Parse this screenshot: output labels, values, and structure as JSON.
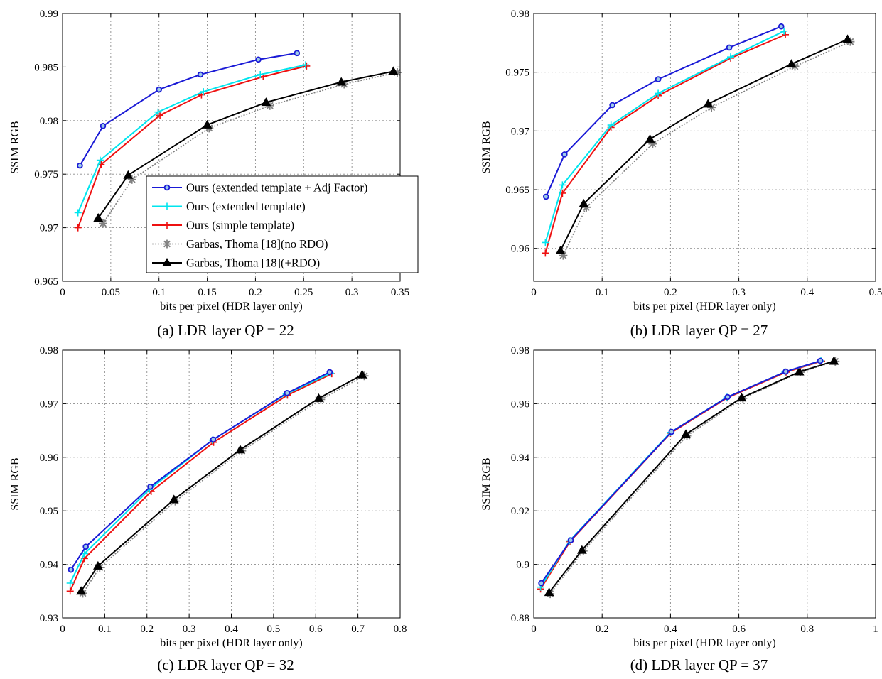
{
  "legend": {
    "entries": [
      {
        "label": "Ours (extended template + Adj Factor)",
        "color": "#1a1ad6",
        "marker": "circle",
        "dash": false
      },
      {
        "label": "Ours (extended template)",
        "color": "#00e5ee",
        "marker": "plus",
        "dash": false
      },
      {
        "label": "Ours (simple template)",
        "color": "#ee1010",
        "marker": "plus",
        "dash": false
      },
      {
        "label": "Garbas, Thoma [18](no RDO)",
        "color": "#808080",
        "marker": "star",
        "dash": true
      },
      {
        "label": "Garbas, Thoma [18](+RDO)",
        "color": "#000000",
        "marker": "triangle",
        "dash": false
      }
    ]
  },
  "chart_data": [
    {
      "type": "line",
      "caption": "(a) LDR layer QP = 22",
      "xlabel": "bits per pixel (HDR layer only)",
      "ylabel": "SSIM RGB",
      "xlim": [
        0,
        0.35
      ],
      "ylim": [
        0.965,
        0.99
      ],
      "xticks": [
        "0",
        "0.05",
        "0.1",
        "0.15",
        "0.2",
        "0.25",
        "0.3",
        "0.35"
      ],
      "yticks": [
        "0.965",
        "0.97",
        "0.975",
        "0.98",
        "0.985",
        "0.99"
      ],
      "grid": true,
      "legend_position": "lower-right",
      "series": [
        {
          "name": "Ours (extended template + Adj Factor)",
          "x": [
            0.018,
            0.042,
            0.1,
            0.143,
            0.203,
            0.243
          ],
          "y": [
            0.9758,
            0.9795,
            0.9829,
            0.9843,
            0.9857,
            0.9863
          ]
        },
        {
          "name": "Ours (extended template)",
          "x": [
            0.016,
            0.039,
            0.099,
            0.146,
            0.205,
            0.252
          ],
          "y": [
            0.9714,
            0.9763,
            0.9808,
            0.9827,
            0.9843,
            0.9852
          ]
        },
        {
          "name": "Ours (simple template)",
          "x": [
            0.016,
            0.04,
            0.101,
            0.144,
            0.208,
            0.253
          ],
          "y": [
            0.97,
            0.9759,
            0.9805,
            0.9824,
            0.9841,
            0.9851
          ]
        },
        {
          "name": "Garbas, Thoma [18](no RDO)",
          "x": [
            0.042,
            0.072,
            0.152,
            0.215,
            0.292,
            0.347
          ],
          "y": [
            0.9704,
            0.9745,
            0.9793,
            0.9814,
            0.9834,
            0.9845
          ]
        },
        {
          "name": "Garbas, Thoma [18](+RDO)",
          "x": [
            0.037,
            0.068,
            0.15,
            0.211,
            0.289,
            0.343
          ],
          "y": [
            0.9709,
            0.9749,
            0.9796,
            0.9817,
            0.9836,
            0.9846
          ]
        }
      ]
    },
    {
      "type": "line",
      "caption": "(b) LDR layer QP = 27",
      "xlabel": "bits per pixel (HDR layer only)",
      "ylabel": "SSIM RGB",
      "xlim": [
        0,
        0.5
      ],
      "ylim": [
        0.9572,
        0.98
      ],
      "xticks": [
        "0",
        "0.1",
        "0.2",
        "0.3",
        "0.4",
        "0.5"
      ],
      "yticks": [
        "0.96",
        "0.965",
        "0.97",
        "0.975",
        "0.98"
      ],
      "grid": true,
      "series": [
        {
          "name": "Ours (extended template + Adj Factor)",
          "x": [
            0.018,
            0.045,
            0.115,
            0.182,
            0.286,
            0.362
          ],
          "y": [
            0.9644,
            0.968,
            0.9722,
            0.9744,
            0.9771,
            0.9789
          ]
        },
        {
          "name": "Ours (extended template)",
          "x": [
            0.017,
            0.042,
            0.113,
            0.182,
            0.288,
            0.366
          ],
          "y": [
            0.9605,
            0.9654,
            0.9705,
            0.9732,
            0.9763,
            0.9785
          ]
        },
        {
          "name": "Ours (simple template)",
          "x": [
            0.017,
            0.042,
            0.113,
            0.182,
            0.288,
            0.368
          ],
          "y": [
            0.9596,
            0.9647,
            0.9703,
            0.973,
            0.9762,
            0.9782
          ]
        },
        {
          "name": "Garbas, Thoma [18](no RDO)",
          "x": [
            0.043,
            0.077,
            0.174,
            0.26,
            0.382,
            0.463
          ],
          "y": [
            0.9594,
            0.9635,
            0.9689,
            0.972,
            0.9755,
            0.9776
          ]
        },
        {
          "name": "Garbas, Thoma [18](+RDO)",
          "x": [
            0.039,
            0.073,
            0.17,
            0.255,
            0.377,
            0.459
          ],
          "y": [
            0.9598,
            0.9638,
            0.9693,
            0.9723,
            0.9757,
            0.9778
          ]
        }
      ]
    },
    {
      "type": "line",
      "caption": "(c) LDR layer QP = 32",
      "xlabel": "bits per pixel (HDR layer only)",
      "ylabel": "SSIM RGB",
      "xlim": [
        0,
        0.8
      ],
      "ylim": [
        0.93,
        0.98
      ],
      "xticks": [
        "0",
        "0.1",
        "0.2",
        "0.3",
        "0.4",
        "0.5",
        "0.6",
        "0.7",
        "0.8"
      ],
      "yticks": [
        "0.93",
        "0.94",
        "0.95",
        "0.96",
        "0.97",
        "0.98"
      ],
      "grid": true,
      "series": [
        {
          "name": "Ours (extended template + Adj Factor)",
          "x": [
            0.02,
            0.055,
            0.208,
            0.357,
            0.532,
            0.633
          ],
          "y": [
            0.939,
            0.9433,
            0.9545,
            0.9633,
            0.972,
            0.9759
          ]
        },
        {
          "name": "Ours (extended template)",
          "x": [
            0.018,
            0.052,
            0.206,
            0.355,
            0.53,
            0.635
          ],
          "y": [
            0.9365,
            0.942,
            0.954,
            0.9632,
            0.9718,
            0.9757
          ]
        },
        {
          "name": "Ours (simple template)",
          "x": [
            0.018,
            0.052,
            0.21,
            0.358,
            0.533,
            0.638
          ],
          "y": [
            0.935,
            0.9411,
            0.9536,
            0.9628,
            0.9716,
            0.9756
          ]
        },
        {
          "name": "Garbas, Thoma [18](no RDO)",
          "x": [
            0.048,
            0.088,
            0.267,
            0.425,
            0.612,
            0.715
          ],
          "y": [
            0.9346,
            0.9394,
            0.9518,
            0.9612,
            0.9708,
            0.9752
          ]
        },
        {
          "name": "Garbas, Thoma [18](+RDO)",
          "x": [
            0.044,
            0.084,
            0.264,
            0.421,
            0.607,
            0.71
          ],
          "y": [
            0.935,
            0.9397,
            0.9521,
            0.9614,
            0.971,
            0.9754
          ]
        }
      ]
    },
    {
      "type": "line",
      "caption": "(d) LDR layer QP = 37",
      "xlabel": "bits per pixel (HDR layer only)",
      "ylabel": "SSIM RGB",
      "xlim": [
        0,
        1
      ],
      "ylim": [
        0.88,
        0.98
      ],
      "xticks": [
        "0",
        "0.2",
        "0.4",
        "0.6",
        "0.8",
        "1"
      ],
      "yticks": [
        "0.88",
        "0.9",
        "0.92",
        "0.94",
        "0.96",
        "0.98"
      ],
      "grid": true,
      "series": [
        {
          "name": "Ours (extended template + Adj Factor)",
          "x": [
            0.022,
            0.108,
            0.403,
            0.567,
            0.737,
            0.838
          ],
          "y": [
            0.893,
            0.909,
            0.9495,
            0.9625,
            0.972,
            0.976
          ]
        },
        {
          "name": "Ours (extended template)",
          "x": [
            0.02,
            0.105,
            0.4,
            0.565,
            0.735,
            0.84
          ],
          "y": [
            0.8915,
            0.9088,
            0.9493,
            0.9624,
            0.9719,
            0.976
          ]
        },
        {
          "name": "Ours (simple template)",
          "x": [
            0.02,
            0.106,
            0.4,
            0.566,
            0.738,
            0.842
          ],
          "y": [
            0.8908,
            0.9085,
            0.949,
            0.9622,
            0.9718,
            0.9759
          ]
        },
        {
          "name": "Garbas, Thoma [18](no RDO)",
          "x": [
            0.048,
            0.145,
            0.448,
            0.612,
            0.78,
            0.882
          ],
          "y": [
            0.889,
            0.905,
            0.948,
            0.962,
            0.9718,
            0.9758
          ]
        },
        {
          "name": "Garbas, Thoma [18](+RDO)",
          "x": [
            0.045,
            0.141,
            0.445,
            0.608,
            0.777,
            0.878
          ],
          "y": [
            0.8895,
            0.9053,
            0.9486,
            0.9622,
            0.9719,
            0.9759
          ]
        }
      ]
    }
  ]
}
